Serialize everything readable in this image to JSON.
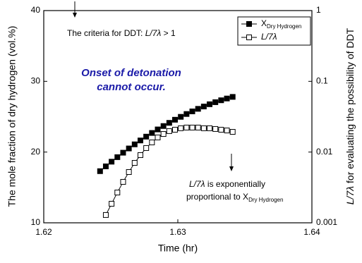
{
  "chart_data": {
    "type": "line",
    "x_label": "Time (hr)",
    "y_label": "The mole fraction of dry hydrogen (vol.%)",
    "y2_label": [
      "L/7λ",
      " for evaluating the possibility of DDT"
    ],
    "annotations": {
      "criteria": [
        "The criteria for DDT: ",
        "L/7λ",
        " > 1"
      ],
      "onset": [
        "Onset of detonation",
        "cannot occur."
      ],
      "note": [
        "L/7λ",
        " is exponentially",
        "proportional to X",
        "Dry Hydrogen"
      ]
    },
    "xlim": [
      1.62,
      1.64
    ],
    "xticks": [
      1.62,
      1.63,
      1.64
    ],
    "ylim": [
      10,
      40
    ],
    "yticks": [
      10,
      20,
      30,
      40
    ],
    "y2lim": [
      0.001,
      1
    ],
    "y2ticks": [
      0.001,
      0.01,
      0.1,
      1
    ],
    "y2log": true,
    "legend": "upper right",
    "series": [
      {
        "name": "X",
        "name_sub": "Dry Hydrogen",
        "color": "#000000",
        "marker": "filled-square",
        "x": [
          1.6242,
          1.62463,
          1.62506,
          1.62549,
          1.62592,
          1.62635,
          1.62678,
          1.62721,
          1.62764,
          1.62807,
          1.6285,
          1.62893,
          1.62936,
          1.62979,
          1.63022,
          1.63065,
          1.63108,
          1.63151,
          1.63194,
          1.63237,
          1.6328,
          1.63323,
          1.63366,
          1.63409
        ],
        "values": [
          17.3,
          17.98,
          18.64,
          19.28,
          19.91,
          20.51,
          21.09,
          21.64,
          22.18,
          22.7,
          23.2,
          23.68,
          24.13,
          24.57,
          24.98,
          25.38,
          25.75,
          26.11,
          26.44,
          26.76,
          27.05,
          27.32,
          27.57,
          27.8
        ]
      },
      {
        "name": "L/7λ",
        "color": "#000000",
        "marker": "open-square",
        "axis": "y2",
        "x": [
          1.62463,
          1.62506,
          1.62549,
          1.62592,
          1.62635,
          1.62678,
          1.62721,
          1.62764,
          1.62807,
          1.6285,
          1.62893,
          1.62936,
          1.62979,
          1.63022,
          1.63065,
          1.63108,
          1.63151,
          1.63194,
          1.63237,
          1.6328,
          1.63323,
          1.63366,
          1.63409
        ],
        "values": [
          0.00129,
          0.00186,
          0.00268,
          0.00379,
          0.00522,
          0.00703,
          0.00906,
          0.0114,
          0.0137,
          0.0161,
          0.018,
          0.0198,
          0.0207,
          0.0217,
          0.0222,
          0.0222,
          0.0222,
          0.0217,
          0.0217,
          0.0212,
          0.0207,
          0.0202,
          0.0193
        ]
      }
    ]
  }
}
